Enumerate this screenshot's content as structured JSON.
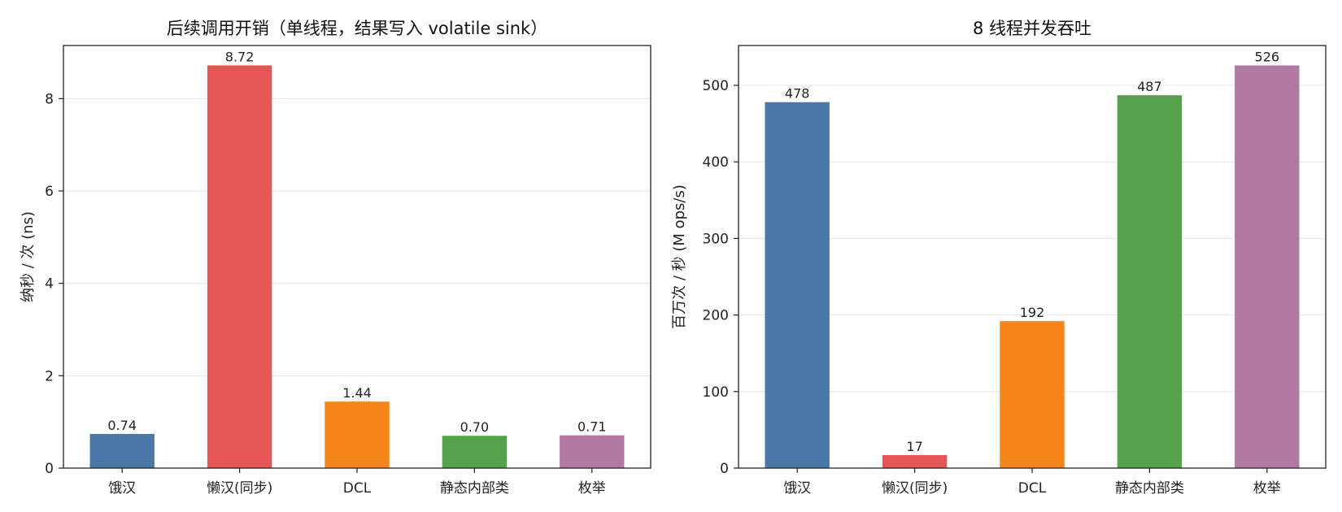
{
  "chart_data": [
    {
      "type": "bar",
      "title": "后续调用开销（单线程，结果写入 volatile sink）",
      "xlabel": "",
      "ylabel": "纳秒 / 次 (ns)",
      "categories": [
        "饿汉",
        "懒汉(同步)",
        "DCL",
        "静态内部类",
        "枚举"
      ],
      "values": [
        0.74,
        8.72,
        1.44,
        0.7,
        0.71
      ],
      "value_labels": [
        "0.74",
        "8.72",
        "1.44",
        "0.70",
        "0.71"
      ],
      "colors": [
        "#4c78a8",
        "#e45756",
        "#f58518",
        "#54a24b",
        "#b279a2"
      ],
      "ylim": [
        0,
        9.15
      ],
      "yticks": [
        0,
        2,
        4,
        6,
        8
      ],
      "grid": true
    },
    {
      "type": "bar",
      "title": "8 线程并发吞吐",
      "xlabel": "",
      "ylabel": "百万次 / 秒 (M ops/s)",
      "categories": [
        "饿汉",
        "懒汉(同步)",
        "DCL",
        "静态内部类",
        "枚举"
      ],
      "values": [
        478,
        17,
        192,
        487,
        526
      ],
      "value_labels": [
        "478",
        "17",
        "192",
        "487",
        "526"
      ],
      "colors": [
        "#4c78a8",
        "#e45756",
        "#f58518",
        "#54a24b",
        "#b279a2"
      ],
      "ylim": [
        0,
        552
      ],
      "yticks": [
        0,
        100,
        200,
        300,
        400,
        500
      ],
      "grid": true
    }
  ]
}
